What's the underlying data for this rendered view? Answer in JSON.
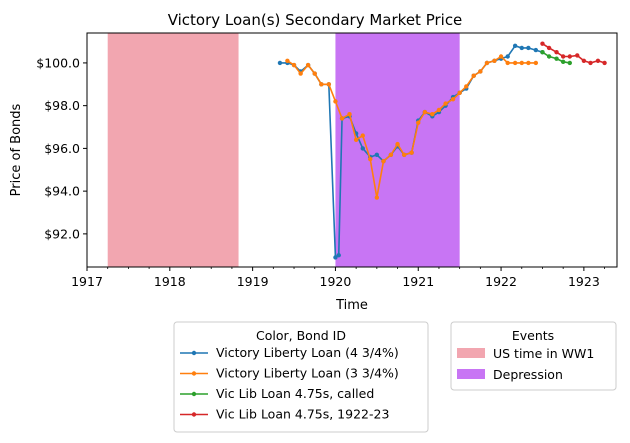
{
  "chart_data": {
    "type": "line",
    "title": "Victory Loan(s) Secondary Market Price",
    "xlabel": "Time",
    "ylabel": "Price of Bonds",
    "xlim": [
      1917.0,
      1923.4
    ],
    "ylim": [
      90.45,
      101.4
    ],
    "x_ticks": [
      1917,
      1918,
      1919,
      1920,
      1921,
      1922,
      1923
    ],
    "x_tick_labels": [
      "1917",
      "1918",
      "1919",
      "1920",
      "1921",
      "1922",
      "1923"
    ],
    "y_ticks": [
      92,
      94,
      96,
      98,
      100
    ],
    "y_tick_labels": [
      "$92.0",
      "$94.0",
      "$96.0",
      "$98.0",
      "$100.0"
    ],
    "grid": false,
    "legend_series_title": "Color, Bond ID",
    "legend_events_title": "Events",
    "events": [
      {
        "name": "US time in WW1",
        "start": 1917.25,
        "end": 1918.83,
        "color": "#f2a6b0"
      },
      {
        "name": "Depression",
        "start": 1920.0,
        "end": 1921.5,
        "color": "#c875f4"
      }
    ],
    "series": [
      {
        "name": "Victory Liberty Loan (4 3/4%)",
        "color": "#1f77b4",
        "x": [
          1919.33,
          1919.42,
          1919.5,
          1919.58,
          1919.67,
          1919.75,
          1919.83,
          1919.92,
          1920.0,
          1920.04,
          1920.08,
          1920.17,
          1920.25,
          1920.33,
          1920.42,
          1920.5,
          1920.58,
          1920.67,
          1920.75,
          1920.83,
          1920.92,
          1921.0,
          1921.08,
          1921.17,
          1921.25,
          1921.33,
          1921.42,
          1921.5,
          1921.58,
          1921.67,
          1921.75,
          1921.83,
          1921.92,
          1922.0,
          1922.08,
          1922.17,
          1922.25,
          1922.33,
          1922.42,
          1922.5
        ],
        "y": [
          100.0,
          100.0,
          99.9,
          99.6,
          99.9,
          99.5,
          99.0,
          99.0,
          90.9,
          91.0,
          97.4,
          97.5,
          96.7,
          96.0,
          95.6,
          95.7,
          95.4,
          95.7,
          96.1,
          95.7,
          95.8,
          97.3,
          97.7,
          97.5,
          97.7,
          98.0,
          98.4,
          98.6,
          98.8,
          99.4,
          99.6,
          100.0,
          100.1,
          100.2,
          100.3,
          100.8,
          100.7,
          100.7,
          100.6,
          100.5
        ]
      },
      {
        "name": "Victory Liberty Loan (3 3/4%)",
        "color": "#ff7f0e",
        "x": [
          1919.42,
          1919.5,
          1919.58,
          1919.67,
          1919.75,
          1919.83,
          1919.92,
          1920.0,
          1920.08,
          1920.17,
          1920.25,
          1920.33,
          1920.42,
          1920.5,
          1920.58,
          1920.67,
          1920.75,
          1920.83,
          1920.92,
          1921.0,
          1921.08,
          1921.17,
          1921.25,
          1921.33,
          1921.42,
          1921.5,
          1921.58,
          1921.67,
          1921.75,
          1921.83,
          1921.92,
          1922.0,
          1922.08,
          1922.17,
          1922.25,
          1922.33,
          1922.42
        ],
        "y": [
          100.1,
          99.9,
          99.5,
          99.9,
          99.5,
          99.0,
          99.0,
          98.2,
          97.4,
          97.6,
          96.4,
          96.6,
          95.5,
          93.7,
          95.4,
          95.7,
          96.2,
          95.7,
          95.8,
          97.2,
          97.7,
          97.6,
          97.8,
          98.1,
          98.3,
          98.6,
          98.9,
          99.4,
          99.6,
          100.0,
          100.1,
          100.3,
          100.0,
          100.0,
          100.0,
          100.0,
          100.0
        ]
      },
      {
        "name": "Vic Lib Loan 4.75s, called",
        "color": "#2ca02c",
        "x": [
          1922.5,
          1922.58,
          1922.67,
          1922.75,
          1922.83
        ],
        "y": [
          100.5,
          100.3,
          100.2,
          100.05,
          100.0
        ]
      },
      {
        "name": "Vic Lib Loan 4.75s, 1922-23",
        "color": "#d62728",
        "x": [
          1922.5,
          1922.58,
          1922.67,
          1922.75,
          1922.83,
          1922.92,
          1923.0,
          1923.08,
          1923.17,
          1923.25
        ],
        "y": [
          100.9,
          100.7,
          100.5,
          100.3,
          100.3,
          100.35,
          100.1,
          100.0,
          100.1,
          100.0
        ]
      }
    ]
  }
}
